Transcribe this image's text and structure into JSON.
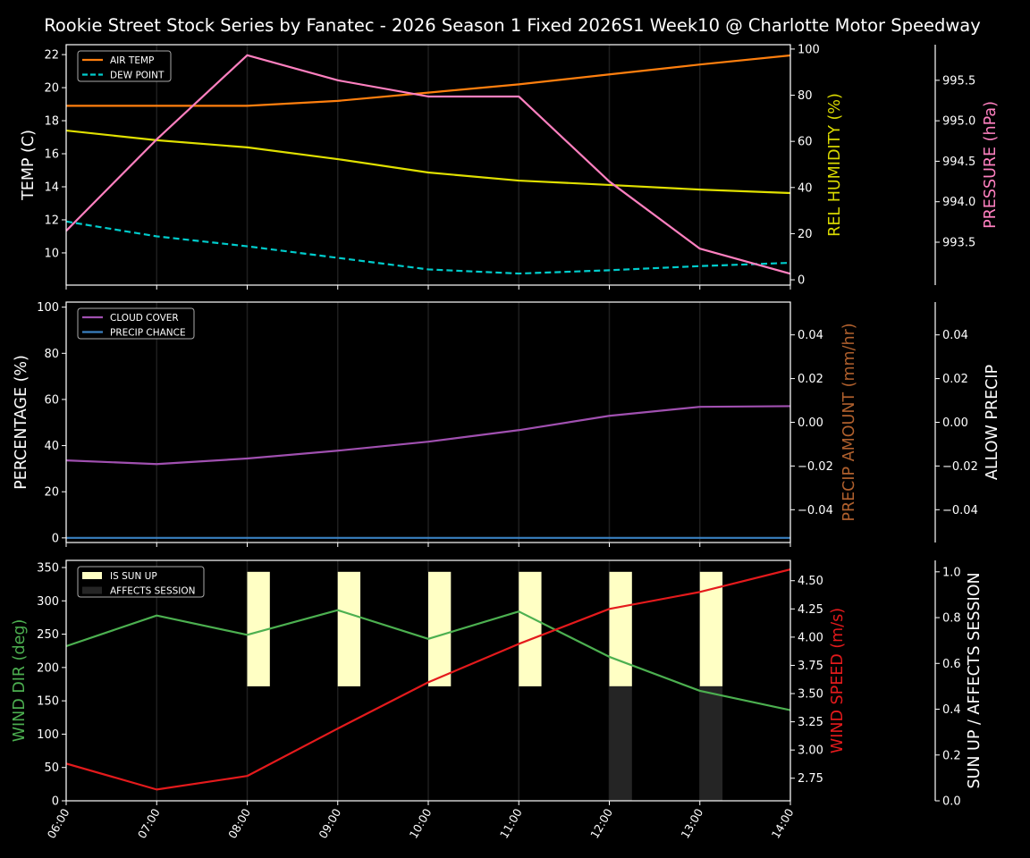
{
  "title": "Rookie Street Stock Series by Fanatec - 2026 Season 1 Fixed 2026S1 Week10 @ Charlotte Motor Speedway",
  "chart_data": [
    {
      "type": "line",
      "x": [
        "06:00",
        "07:00",
        "08:00",
        "09:00",
        "10:00",
        "11:00",
        "12:00",
        "13:00",
        "14:00"
      ],
      "xtick_labels_visible": false,
      "grid": "vertical",
      "legend": "top-left",
      "y": {
        "label": "TEMP (C)",
        "color": "#ffffff",
        "lim": [
          8.05,
          22.6
        ],
        "ticks": [
          "10",
          "12",
          "14",
          "16",
          "18",
          "20",
          "22"
        ]
      },
      "y2": {
        "label": "REL HUMIDITY (%)",
        "color": "#d8d800",
        "lim": [
          -2.3,
          101.9
        ],
        "ticks": [
          "0",
          "20",
          "40",
          "60",
          "80",
          "100"
        ]
      },
      "y3": {
        "label": "PRESSURE (hPa)",
        "color": "#ff80c0",
        "lim": [
          992.97,
          995.94
        ],
        "ticks": [
          "993.5",
          "994.0",
          "994.5",
          "995.0",
          "995.5"
        ]
      },
      "series": [
        {
          "name": "AIR TEMP",
          "axis": "y",
          "color": "#ff7f0e",
          "dash": false,
          "values": [
            18.9,
            18.9,
            18.9,
            19.2,
            19.7,
            20.2,
            20.8,
            21.4,
            21.95
          ]
        },
        {
          "name": "DEW POINT",
          "axis": "y",
          "color": "#00cccc",
          "dash": true,
          "values": [
            11.9,
            11.0,
            10.4,
            9.7,
            9.0,
            8.75,
            8.95,
            9.2,
            9.4
          ]
        },
        {
          "axis": "y2",
          "color": "#e0e000",
          "dash": false,
          "values": [
            64.7,
            60.5,
            57.4,
            52.3,
            46.5,
            43.0,
            41.1,
            39.1,
            37.6
          ]
        },
        {
          "axis": "y3",
          "color": "#ff80c0",
          "dash": false,
          "values": [
            993.64,
            994.77,
            995.81,
            995.5,
            995.3,
            995.3,
            994.25,
            993.42,
            993.11
          ]
        }
      ]
    },
    {
      "type": "line",
      "x": [
        "06:00",
        "07:00",
        "08:00",
        "09:00",
        "10:00",
        "11:00",
        "12:00",
        "13:00",
        "14:00"
      ],
      "xtick_labels_visible": false,
      "grid": "vertical",
      "legend": "top-left",
      "y": {
        "label": "PERCENTAGE (%)",
        "color": "#ffffff",
        "lim": [
          -2,
          102.2
        ],
        "ticks": [
          "0",
          "20",
          "40",
          "60",
          "80",
          "100"
        ]
      },
      "y2": {
        "label": "PRECIP AMOUNT (mm/hr)",
        "color": "#b0602d",
        "lim": [
          -0.055,
          0.055
        ],
        "ticks": [
          "−0.04",
          "−0.02",
          "0.00",
          "0.02",
          "0.04"
        ]
      },
      "y3": {
        "label": "ALLOW PRECIP",
        "color": "#ffffff",
        "lim": [
          -0.055,
          0.055
        ],
        "ticks": [
          "−0.04",
          "−0.02",
          "0.00",
          "0.02",
          "0.04"
        ]
      },
      "series": [
        {
          "name": "CLOUD COVER",
          "axis": "y",
          "color": "#a050b0",
          "dash": false,
          "values": [
            33.6,
            32.0,
            34.4,
            37.8,
            41.7,
            46.7,
            52.9,
            56.8,
            57.1
          ]
        },
        {
          "name": "PRECIP CHANCE",
          "axis": "y",
          "color": "#3a80c0",
          "dash": false,
          "values": [
            0,
            0,
            0,
            0,
            0,
            0,
            0,
            0,
            0
          ]
        }
      ]
    },
    {
      "type": "line",
      "x": [
        "06:00",
        "07:00",
        "08:00",
        "09:00",
        "10:00",
        "11:00",
        "12:00",
        "13:00",
        "14:00"
      ],
      "xtick_labels_visible": true,
      "grid": "vertical",
      "legend": "top-left",
      "y": {
        "label": "WIND DIR (deg)",
        "color": "#4caf50",
        "lim": [
          0,
          360.7
        ],
        "ticks": [
          "0",
          "50",
          "100",
          "150",
          "200",
          "250",
          "300",
          "350"
        ]
      },
      "y2": {
        "label": "WIND SPEED (m/s)",
        "color": "#e41a1c",
        "lim": [
          2.55,
          4.68
        ],
        "ticks": [
          "2.75",
          "3.00",
          "3.25",
          "3.50",
          "3.75",
          "4.00",
          "4.25",
          "4.50"
        ]
      },
      "y3": {
        "label": "SUN UP / AFFECTS SESSION",
        "color": "#ffffff",
        "lim": [
          0,
          1.05
        ],
        "ticks": [
          "0.0",
          "0.2",
          "0.4",
          "0.6",
          "0.8",
          "1.0"
        ]
      },
      "series": [
        {
          "axis": "y",
          "color": "#4cb050",
          "dash": false,
          "values": [
            232,
            278,
            249,
            286,
            243,
            284,
            216,
            165,
            136
          ]
        },
        {
          "axis": "y2",
          "color": "#e41a1c",
          "dash": false,
          "values": [
            2.88,
            2.65,
            2.77,
            3.19,
            3.6,
            3.94,
            4.25,
            4.4,
            4.6
          ]
        }
      ],
      "bars": [
        {
          "name": "IS SUN UP",
          "axis": "y3",
          "color": "#ffffc4",
          "values": [
            0,
            0,
            1,
            1,
            1,
            1,
            1,
            1,
            0
          ]
        },
        {
          "name": "AFFECTS SESSION",
          "axis": "y3",
          "color": "#252525",
          "values": [
            0,
            0,
            0,
            0,
            0,
            0,
            1,
            1,
            0
          ]
        }
      ]
    }
  ]
}
